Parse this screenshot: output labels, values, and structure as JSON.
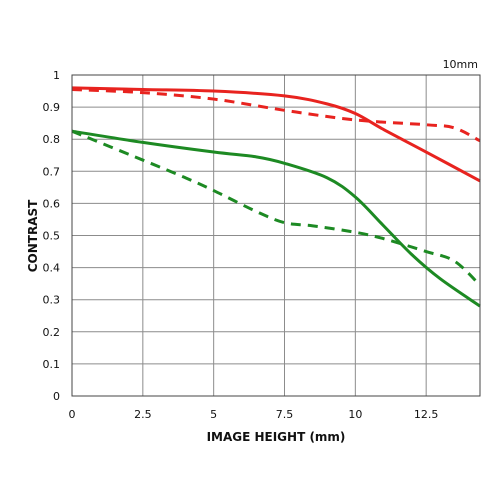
{
  "chart_data": {
    "type": "line",
    "label_top_right": "10mm",
    "xlabel": "IMAGE HEIGHT (mm)",
    "ylabel": "CONTRAST",
    "xlim": [
      0,
      14.4
    ],
    "ylim": [
      0,
      1
    ],
    "x_ticks": [
      {
        "value": 0,
        "label": "0"
      },
      {
        "value": 2.5,
        "label": "2.5"
      },
      {
        "value": 5,
        "label": "5"
      },
      {
        "value": 7.5,
        "label": "7.5"
      },
      {
        "value": 10,
        "label": "10"
      },
      {
        "value": 12.5,
        "label": "12.5"
      }
    ],
    "y_ticks": [
      {
        "value": 0,
        "label": "0"
      },
      {
        "value": 0.1,
        "label": "0.1"
      },
      {
        "value": 0.2,
        "label": "0.2"
      },
      {
        "value": 0.3,
        "label": "0.3"
      },
      {
        "value": 0.4,
        "label": "0.4"
      },
      {
        "value": 0.5,
        "label": "0.5"
      },
      {
        "value": 0.6,
        "label": "0.6"
      },
      {
        "value": 0.7,
        "label": "0.7"
      },
      {
        "value": 0.8,
        "label": "0.8"
      },
      {
        "value": 0.9,
        "label": "0.9"
      },
      {
        "value": 1,
        "label": "1"
      }
    ],
    "grid": true,
    "colors": {
      "red": "#e8231f",
      "green": "#1d8a23",
      "grid": "#8c8c8c",
      "axis": "#444444"
    },
    "series": [
      {
        "color": "red",
        "style": "solid",
        "x": [
          0,
          2.5,
          5,
          7.5,
          9,
          10,
          11,
          12.5,
          14.4
        ],
        "y": [
          0.96,
          0.955,
          0.95,
          0.935,
          0.91,
          0.88,
          0.83,
          0.76,
          0.67
        ]
      },
      {
        "color": "red",
        "style": "dashed",
        "x": [
          0,
          2.5,
          5,
          7.5,
          10,
          12.5,
          13.5,
          14.4
        ],
        "y": [
          0.955,
          0.945,
          0.925,
          0.89,
          0.86,
          0.845,
          0.835,
          0.795
        ]
      },
      {
        "color": "green",
        "style": "solid",
        "x": [
          0,
          2.5,
          5,
          6.5,
          7.5,
          9,
          10,
          11,
          12,
          13,
          14.4
        ],
        "y": [
          0.825,
          0.79,
          0.76,
          0.745,
          0.725,
          0.68,
          0.62,
          0.53,
          0.44,
          0.365,
          0.28
        ]
      },
      {
        "color": "green",
        "style": "dashed",
        "x": [
          0,
          2.5,
          4,
          5,
          6.5,
          7.5,
          8.5,
          10,
          11,
          12.5,
          13.5,
          14.4
        ],
        "y": [
          0.825,
          0.735,
          0.68,
          0.64,
          0.575,
          0.54,
          0.53,
          0.51,
          0.49,
          0.45,
          0.42,
          0.345
        ]
      }
    ]
  }
}
